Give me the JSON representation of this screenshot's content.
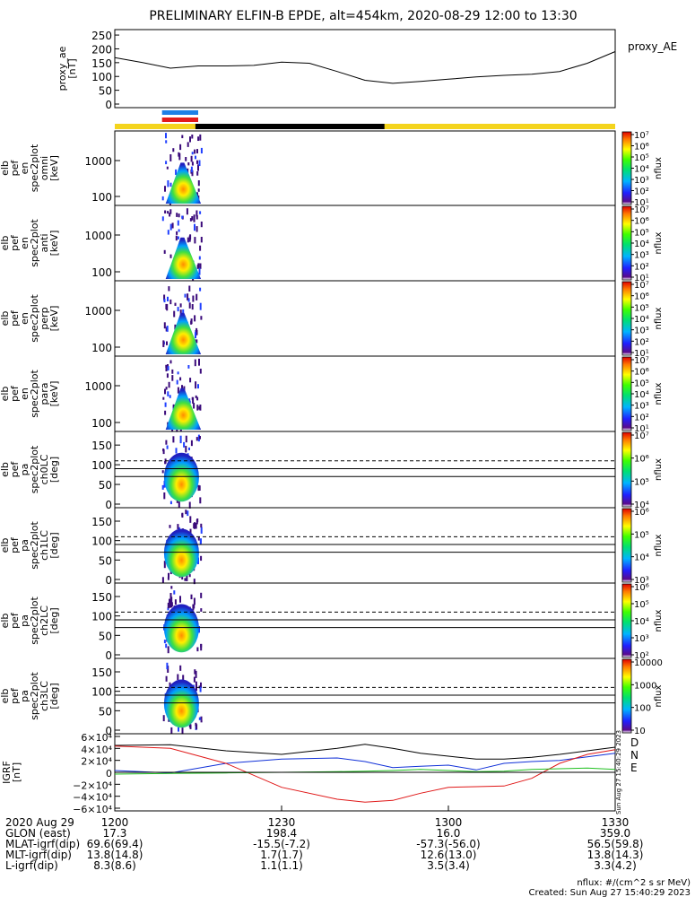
{
  "title": "PRELIMINARY ELFIN-B EPDE, alt=454km, 2020-08-29 12:00 to 13:30",
  "colors": {
    "trace": "#000000",
    "bar_blue": "#1e7fe6",
    "bar_red": "#e21b1b",
    "strip_yellow": "#f4d41d",
    "strip_black": "#000000",
    "bx": "#000000",
    "by": "#1030d8",
    "bz": "#e01818",
    "bgreen": "#20c020"
  },
  "chart_data": [
    {
      "type": "line",
      "name": "proxy_ae",
      "ylabel_lines": [
        "proxy_ae",
        "[nT]"
      ],
      "right_label": "proxy_AE",
      "ylim": [
        0,
        260
      ],
      "yticks": [
        "0",
        "50",
        "100",
        "150",
        "200",
        "250"
      ],
      "x": [
        0,
        5,
        10,
        15,
        20,
        25,
        30,
        35,
        40,
        45,
        50,
        55,
        60,
        65,
        70,
        75,
        80,
        85,
        90
      ],
      "values": [
        168,
        150,
        130,
        138,
        138,
        140,
        152,
        148,
        118,
        86,
        75,
        82,
        90,
        98,
        104,
        108,
        118,
        148,
        190
      ]
    },
    {
      "type": "heatmap",
      "name": "elb_pef_en_spec2plot_omni",
      "ylabel_lines": [
        "elb",
        "pef",
        "en",
        "spec2plot",
        "omni",
        "[keV]"
      ],
      "yticks": [
        "100",
        "1000"
      ],
      "cbar_ticks": [
        "10⁷",
        "10⁶",
        "10⁵",
        "10⁴",
        "10³",
        "10²",
        "10¹"
      ],
      "cbar_label": "nflux"
    },
    {
      "type": "heatmap",
      "name": "elb_pef_en_spec2plot_anti",
      "ylabel_lines": [
        "elb",
        "pef",
        "en",
        "spec2plot",
        "anti",
        "[keV]"
      ],
      "yticks": [
        "100",
        "1000"
      ],
      "cbar_ticks": [
        "10⁷",
        "10⁶",
        "10⁵",
        "10⁴",
        "10³",
        "10²",
        "10¹"
      ],
      "cbar_label": "nflux"
    },
    {
      "type": "heatmap",
      "name": "elb_pef_en_spec2plot_perp",
      "ylabel_lines": [
        "elb",
        "pef",
        "en",
        "spec2plot",
        "perp",
        "[keV]"
      ],
      "yticks": [
        "100",
        "1000"
      ],
      "cbar_ticks": [
        "10⁷",
        "10⁶",
        "10⁵",
        "10⁴",
        "10³",
        "10²",
        "10¹"
      ],
      "cbar_label": "nflux"
    },
    {
      "type": "heatmap",
      "name": "elb_pef_en_spec2plot_para",
      "ylabel_lines": [
        "elb",
        "pef",
        "en",
        "spec2plot",
        "para",
        "[keV]"
      ],
      "yticks": [
        "100",
        "1000"
      ],
      "cbar_ticks": [
        "10⁷",
        "10⁶",
        "10⁵",
        "10⁴",
        "10³",
        "10²",
        "10¹"
      ],
      "cbar_label": "nflux"
    },
    {
      "type": "heatmap",
      "name": "elb_pef_pa_spec2plot_ch0LC",
      "ylabel_lines": [
        "elb",
        "pef",
        "pa",
        "spec2plot",
        "ch0LC",
        "[deg]"
      ],
      "ylim": [
        0,
        180
      ],
      "yticks": [
        "0",
        "50",
        "100",
        "150"
      ],
      "cbar_ticks": [
        "10⁷",
        "10⁶",
        "10⁵",
        "10⁴"
      ],
      "cbar_label": "nflux"
    },
    {
      "type": "heatmap",
      "name": "elb_pef_pa_spec2plot_ch1LC",
      "ylabel_lines": [
        "elb",
        "pef",
        "pa",
        "spec2plot",
        "ch1LC",
        "[deg]"
      ],
      "ylim": [
        0,
        180
      ],
      "yticks": [
        "0",
        "50",
        "100",
        "150"
      ],
      "cbar_ticks": [
        "10⁶",
        "10⁵",
        "10⁴",
        "10³"
      ],
      "cbar_label": "nflux"
    },
    {
      "type": "heatmap",
      "name": "elb_pef_pa_spec2plot_ch2LC",
      "ylabel_lines": [
        "elb",
        "pef",
        "pa",
        "spec2plot",
        "ch2LC",
        "[deg]"
      ],
      "ylim": [
        0,
        180
      ],
      "yticks": [
        "0",
        "50",
        "100",
        "150"
      ],
      "cbar_ticks": [
        "10⁶",
        "10⁵",
        "10⁴",
        "10³",
        "10²"
      ],
      "cbar_label": "nflux"
    },
    {
      "type": "heatmap",
      "name": "elb_pef_pa_spec2plot_ch3LC",
      "ylabel_lines": [
        "elb",
        "pef",
        "pa",
        "spec2plot",
        "ch3LC",
        "[deg]"
      ],
      "ylim": [
        0,
        180
      ],
      "yticks": [
        "0",
        "50",
        "100",
        "150"
      ],
      "cbar_ticks": [
        "10000",
        "1000",
        "100",
        "10"
      ],
      "cbar_label": "nflux"
    },
    {
      "type": "line",
      "name": "igrf",
      "ylabel_lines": [
        "IGRF",
        "[nT]"
      ],
      "ylim": [
        -65000,
        65000
      ],
      "yticks": [
        "6×10⁴",
        "4×10⁴",
        "2×10⁴",
        "0",
        "−2×10⁴",
        "−4×10⁴",
        "−6×10⁴"
      ],
      "legend": [
        "D",
        "N",
        "E"
      ],
      "x": [
        0,
        10,
        20,
        30,
        40,
        45,
        50,
        55,
        60,
        65,
        70,
        75,
        80,
        85,
        90
      ],
      "series": [
        {
          "values": [
            45000,
            46000,
            36000,
            30000,
            40000,
            47000,
            40000,
            32000,
            27000,
            22000,
            22000,
            25000,
            30000,
            36000,
            42000
          ]
        },
        {
          "values": [
            3000,
            -1000,
            15000,
            22000,
            24000,
            18000,
            8000,
            10000,
            12000,
            4000,
            15000,
            18000,
            20000,
            26000,
            32000
          ]
        },
        {
          "values": [
            44000,
            40000,
            15000,
            -25000,
            -45000,
            -50000,
            -47000,
            -35000,
            -25000,
            -24000,
            -23000,
            -10000,
            15000,
            30000,
            38000
          ]
        },
        {
          "values": [
            -3000,
            -2000,
            -1000,
            0,
            1000,
            2000,
            3000,
            5000,
            3000,
            1000,
            2000,
            5000,
            6000,
            7000,
            5000
          ]
        }
      ]
    }
  ],
  "time_axis": {
    "ticks": [
      "1200",
      "1230",
      "1300",
      "1330"
    ],
    "rows": [
      {
        "label": "2020 Aug 29",
        "values": [
          "",
          "",
          "",
          ""
        ]
      },
      {
        "label": "GLON (east)",
        "values": [
          "17.3",
          "198.4",
          "16.0",
          "359.0"
        ]
      },
      {
        "label": "MLAT-igrf(dip)",
        "values": [
          "69.6(69.4)",
          "-15.5(-7.2)",
          "-57.3(-56.0)",
          "56.5(59.8)"
        ]
      },
      {
        "label": "MLT-igrf(dip)",
        "values": [
          "13.8(14.8)",
          "1.7(1.7)",
          "12.6(13.0)",
          "13.8(14.3)"
        ]
      },
      {
        "label": "L-igrf(dip)",
        "values": [
          "8.3(8.6)",
          "1.1(1.1)",
          "3.5(3.4)",
          "3.3(4.2)"
        ]
      }
    ]
  },
  "footer": {
    "units": "nflux: #/(cm^2 s sr MeV)",
    "created": "Created: Sun Aug 27 15:40:29 2023",
    "side_stamp": "Sun Aug 27 15:40:29 2023"
  }
}
